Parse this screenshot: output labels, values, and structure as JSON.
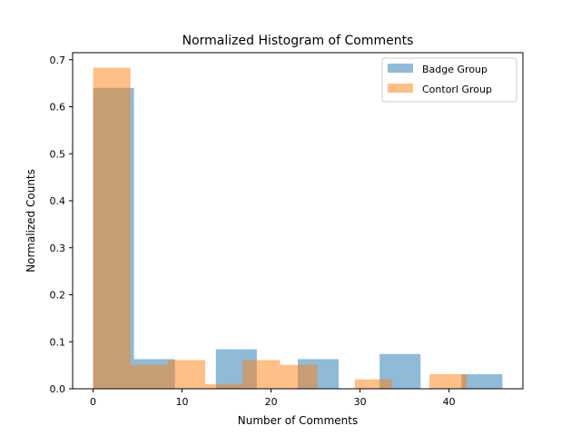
{
  "chart_data": {
    "type": "bar",
    "title": "Normalized Histogram of Comments",
    "xlabel": "Number of Comments",
    "ylabel": "Normalized Counts",
    "xlim": [
      -2.3,
      48.3
    ],
    "ylim": [
      0,
      0.715
    ],
    "xticks": [
      0,
      10,
      20,
      30,
      40
    ],
    "yticks": [
      0.0,
      0.1,
      0.2,
      0.3,
      0.4,
      0.5,
      0.6,
      0.7
    ],
    "legend_position": "top-right",
    "series": [
      {
        "name": "Badge Group",
        "color": "#1f77b4",
        "alpha": 0.5,
        "bins": [
          {
            "x0": 0.0,
            "x1": 4.6,
            "value": 0.64
          },
          {
            "x0": 4.6,
            "x1": 9.2,
            "value": 0.063
          },
          {
            "x0": 9.2,
            "x1": 13.8,
            "value": 0.0
          },
          {
            "x0": 13.8,
            "x1": 18.4,
            "value": 0.084
          },
          {
            "x0": 18.4,
            "x1": 23.0,
            "value": 0.0
          },
          {
            "x0": 23.0,
            "x1": 27.6,
            "value": 0.063
          },
          {
            "x0": 27.6,
            "x1": 32.2,
            "value": 0.0
          },
          {
            "x0": 32.2,
            "x1": 36.8,
            "value": 0.074
          },
          {
            "x0": 36.8,
            "x1": 41.4,
            "value": 0.0
          },
          {
            "x0": 41.4,
            "x1": 46.0,
            "value": 0.031
          }
        ]
      },
      {
        "name": "Contorl Group",
        "color": "#ff7f0e",
        "alpha": 0.5,
        "bins": [
          {
            "x0": 0.0,
            "x1": 4.2,
            "value": 0.683
          },
          {
            "x0": 4.2,
            "x1": 8.4,
            "value": 0.051
          },
          {
            "x0": 8.4,
            "x1": 12.6,
            "value": 0.061
          },
          {
            "x0": 12.6,
            "x1": 16.8,
            "value": 0.01
          },
          {
            "x0": 16.8,
            "x1": 21.0,
            "value": 0.061
          },
          {
            "x0": 21.0,
            "x1": 25.2,
            "value": 0.051
          },
          {
            "x0": 25.2,
            "x1": 29.4,
            "value": 0.0
          },
          {
            "x0": 29.4,
            "x1": 33.6,
            "value": 0.02
          },
          {
            "x0": 33.6,
            "x1": 37.8,
            "value": 0.0
          },
          {
            "x0": 37.8,
            "x1": 42.0,
            "value": 0.031
          }
        ]
      }
    ]
  }
}
